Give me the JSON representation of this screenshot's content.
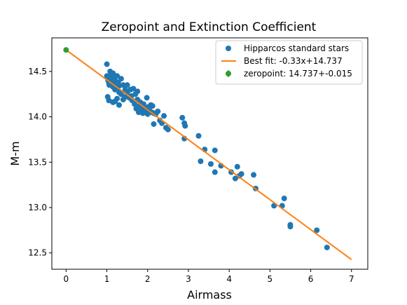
{
  "chart_data": {
    "type": "scatter",
    "title": "Zeropoint and Extinction Coefficient",
    "xlabel": "Airmass",
    "ylabel": "M-m",
    "xlim": [
      -0.35,
      7.4
    ],
    "ylim": [
      12.32,
      14.87
    ],
    "xticks": [
      0,
      1,
      2,
      3,
      4,
      5,
      6,
      7
    ],
    "yticks": [
      12.5,
      13.0,
      13.5,
      14.0,
      14.5
    ],
    "ytick_labels": [
      "12.5",
      "13.0",
      "13.5",
      "14.0",
      "14.5"
    ],
    "grid": false,
    "legend_position": "top-right",
    "colors": {
      "stars": "#1f77b4",
      "fit": "#ff7f0e",
      "zeropoint": "#2ca02c"
    },
    "series": [
      {
        "name": "Hipparcos standard stars",
        "kind": "scatter",
        "points": [
          [
            1.0,
            14.58
          ],
          [
            1.0,
            14.45
          ],
          [
            1.02,
            14.43
          ],
          [
            1.03,
            14.4
          ],
          [
            1.05,
            14.37
          ],
          [
            1.06,
            14.35
          ],
          [
            1.08,
            14.5
          ],
          [
            1.1,
            14.46
          ],
          [
            1.1,
            14.41
          ],
          [
            1.12,
            14.38
          ],
          [
            1.15,
            14.33
          ],
          [
            1.15,
            14.48
          ],
          [
            1.18,
            14.43
          ],
          [
            1.2,
            14.4
          ],
          [
            1.2,
            14.3
          ],
          [
            1.22,
            14.36
          ],
          [
            1.25,
            14.45
          ],
          [
            1.25,
            14.32
          ],
          [
            1.28,
            14.38
          ],
          [
            1.3,
            14.34
          ],
          [
            1.3,
            14.27
          ],
          [
            1.02,
            14.22
          ],
          [
            1.05,
            14.18
          ],
          [
            1.15,
            14.16
          ],
          [
            1.2,
            14.17
          ],
          [
            1.25,
            14.2
          ],
          [
            1.3,
            14.13
          ],
          [
            1.35,
            14.25
          ],
          [
            1.35,
            14.42
          ],
          [
            1.4,
            14.35
          ],
          [
            1.4,
            14.19
          ],
          [
            1.45,
            14.3
          ],
          [
            1.45,
            14.22
          ],
          [
            1.5,
            14.27
          ],
          [
            1.5,
            14.35
          ],
          [
            1.55,
            14.21
          ],
          [
            1.58,
            14.3
          ],
          [
            1.6,
            14.23
          ],
          [
            1.62,
            14.18
          ],
          [
            1.65,
            14.31
          ],
          [
            1.68,
            14.14
          ],
          [
            1.7,
            14.25
          ],
          [
            1.72,
            14.09
          ],
          [
            1.75,
            14.19
          ],
          [
            1.75,
            14.28
          ],
          [
            1.78,
            14.05
          ],
          [
            1.8,
            14.12
          ],
          [
            1.82,
            14.16
          ],
          [
            1.85,
            14.08
          ],
          [
            1.88,
            14.04
          ],
          [
            1.9,
            14.14
          ],
          [
            1.92,
            14.1
          ],
          [
            1.95,
            14.06
          ],
          [
            1.98,
            14.21
          ],
          [
            2.0,
            14.03
          ],
          [
            2.02,
            14.11
          ],
          [
            2.05,
            14.07
          ],
          [
            2.08,
            14.13
          ],
          [
            2.1,
            14.05
          ],
          [
            2.12,
            14.12
          ],
          [
            2.15,
            14.04
          ],
          [
            2.15,
            13.92
          ],
          [
            2.2,
            14.03
          ],
          [
            2.25,
            14.06
          ],
          [
            2.3,
            13.96
          ],
          [
            2.35,
            13.93
          ],
          [
            2.4,
            14.01
          ],
          [
            2.45,
            13.88
          ],
          [
            2.5,
            13.86
          ],
          [
            2.85,
            13.99
          ],
          [
            2.9,
            13.93
          ],
          [
            2.92,
            13.9
          ],
          [
            2.9,
            13.76
          ],
          [
            3.25,
            13.79
          ],
          [
            3.3,
            13.51
          ],
          [
            3.4,
            13.64
          ],
          [
            3.55,
            13.48
          ],
          [
            3.65,
            13.63
          ],
          [
            3.65,
            13.39
          ],
          [
            3.8,
            13.46
          ],
          [
            4.05,
            13.39
          ],
          [
            4.15,
            13.32
          ],
          [
            4.2,
            13.45
          ],
          [
            4.25,
            13.35
          ],
          [
            4.3,
            13.37
          ],
          [
            4.6,
            13.36
          ],
          [
            4.65,
            13.21
          ],
          [
            5.1,
            13.02
          ],
          [
            5.3,
            13.02
          ],
          [
            5.35,
            13.1
          ],
          [
            5.5,
            12.81
          ],
          [
            5.5,
            12.79
          ],
          [
            6.15,
            12.75
          ],
          [
            6.4,
            12.56
          ]
        ]
      },
      {
        "name": "Best fit: -0.33x+14.737",
        "kind": "line",
        "slope": -0.33,
        "intercept": 14.737,
        "x_range": [
          0,
          7
        ]
      },
      {
        "name": "zeropoint: 14.737+-0.015",
        "kind": "errorbar",
        "x": 0,
        "y": 14.737,
        "yerr": 0.015
      }
    ]
  }
}
